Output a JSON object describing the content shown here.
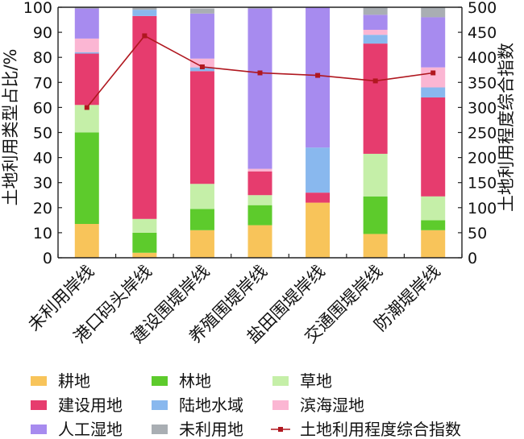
{
  "chart_data": {
    "type": "bar",
    "stacked": true,
    "secondary_type": "line",
    "categories": [
      "未利用岸线",
      "港口码头岸线",
      "建设围堤岸线",
      "养殖围堤岸线",
      "盐田围堤岸线",
      "交通围堤岸线",
      "防潮堤岸线"
    ],
    "ylabel": "土地利用类型占比/%",
    "y2label": "土地利用程度综合指数",
    "ylim": [
      0,
      100
    ],
    "y2lim": [
      0,
      500
    ],
    "yticks": [
      0,
      10,
      20,
      30,
      40,
      50,
      60,
      70,
      80,
      90,
      100
    ],
    "y2ticks": [
      0,
      50,
      100,
      150,
      200,
      250,
      300,
      350,
      400,
      450,
      500
    ],
    "legend_position": "bottom",
    "series": [
      {
        "name": "耕地",
        "color": "#F8C45A",
        "values": [
          13.5,
          2,
          11,
          13,
          22,
          9.5,
          11
        ]
      },
      {
        "name": "林地",
        "color": "#5DCB2C",
        "values": [
          36.5,
          8,
          8.5,
          8,
          0,
          15,
          4
        ]
      },
      {
        "name": "草地",
        "color": "#C5EFA8",
        "values": [
          11,
          5.5,
          10,
          4,
          0,
          17,
          9.5
        ]
      },
      {
        "name": "建设用地",
        "color": "#E63C6E",
        "values": [
          20.5,
          81,
          45,
          9.5,
          4,
          44,
          39.5
        ]
      },
      {
        "name": "陆地水域",
        "color": "#89B8EE",
        "values": [
          0.5,
          2.5,
          1.5,
          0,
          18,
          3.5,
          4
        ]
      },
      {
        "name": "滨海湿地",
        "color": "#FBB6D3",
        "values": [
          5.5,
          0,
          3.5,
          1,
          0,
          2,
          8
        ]
      },
      {
        "name": "人工湿地",
        "color": "#A78BEF",
        "values": [
          12,
          0,
          18,
          64,
          56,
          6,
          20
        ]
      },
      {
        "name": "未利用地",
        "color": "#A9AEB3",
        "values": [
          0.5,
          1,
          2,
          0.5,
          0,
          3,
          4
        ]
      }
    ],
    "line_series": {
      "name": "土地利用程度综合指数",
      "color": "#B0171F",
      "values": [
        300,
        443,
        381,
        369,
        364,
        353,
        369
      ]
    }
  }
}
